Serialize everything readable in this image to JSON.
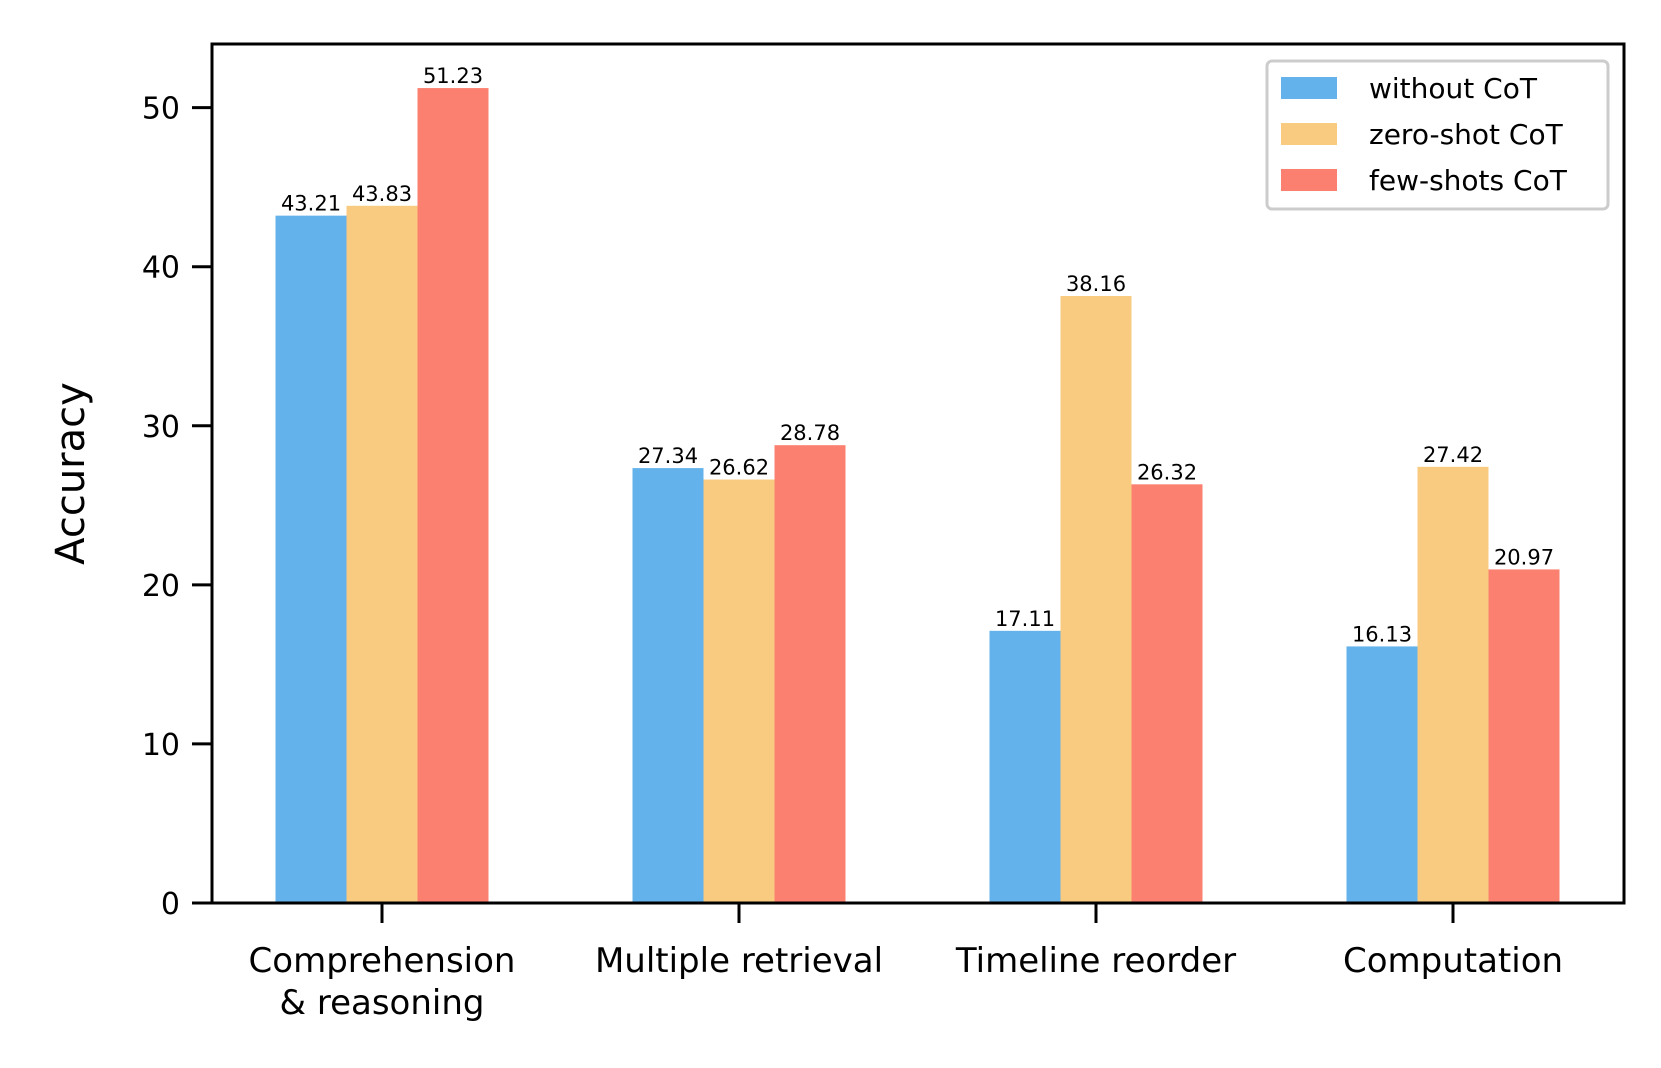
{
  "chart_data": {
    "type": "bar",
    "title": "",
    "xlabel": "",
    "ylabel": "Accuracy",
    "ylim": [
      0,
      54
    ],
    "yticks": [
      0,
      10,
      20,
      30,
      40,
      50
    ],
    "grid": false,
    "legend_position": "top-right",
    "categories": [
      [
        "Comprehension",
        "& reasoning"
      ],
      [
        "Multiple retrieval"
      ],
      [
        "Timeline reorder"
      ],
      [
        "Computation"
      ]
    ],
    "series": [
      {
        "name": "without CoT",
        "color": "#63b2eb",
        "values": [
          43.21,
          27.34,
          17.11,
          16.13
        ],
        "labels": [
          "43.21",
          "27.34",
          "17.11",
          "16.13"
        ]
      },
      {
        "name": "zero-shot CoT",
        "color": "#f8cb80",
        "values": [
          43.83,
          26.62,
          38.16,
          27.42
        ],
        "labels": [
          "43.83",
          "26.62",
          "38.16",
          "27.42"
        ]
      },
      {
        "name": "few-shots CoT",
        "color": "#fb8070",
        "values": [
          51.23,
          28.78,
          26.32,
          20.97
        ],
        "labels": [
          "51.23",
          "28.78",
          "26.32",
          "20.97"
        ]
      }
    ]
  }
}
